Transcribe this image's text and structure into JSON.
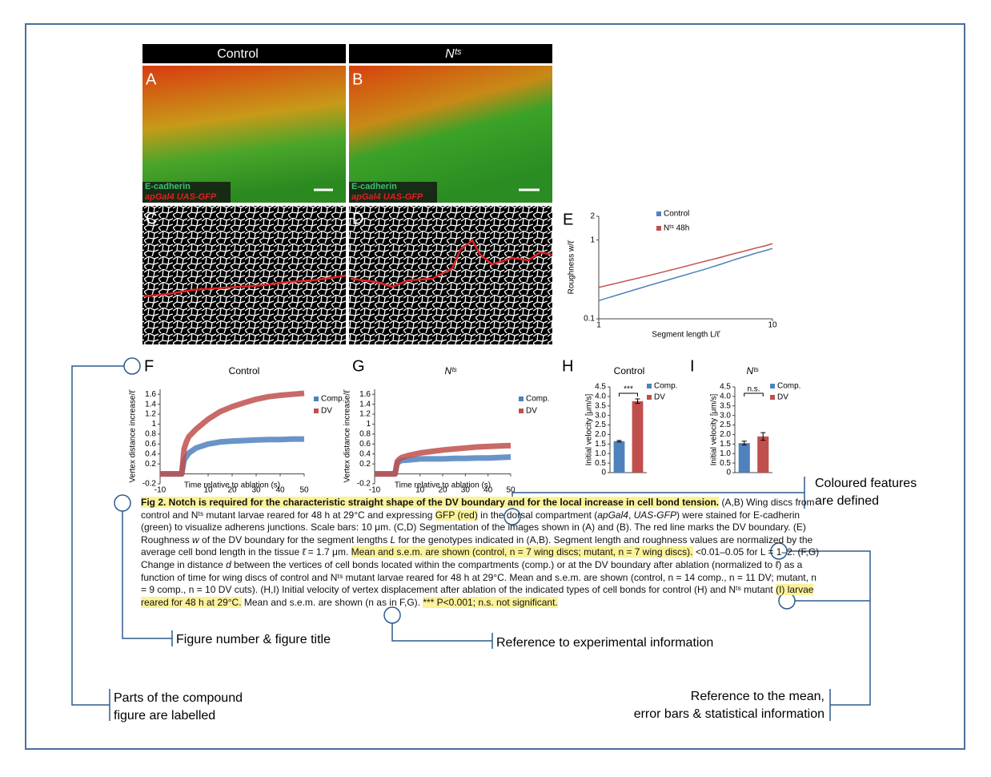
{
  "micrographs": {
    "headers": [
      "Control",
      "Nᵗˢ"
    ],
    "letters": [
      "A",
      "B",
      "C",
      "D"
    ],
    "stain_labels": [
      "E-cadherin",
      "E-cadherin"
    ],
    "reporter_labels": [
      "apGal4 UAS-GFP",
      "apGal4 UAS-GFP"
    ]
  },
  "chart_data": [
    {
      "type": "line",
      "label": "E",
      "x": [
        1,
        2,
        3,
        4,
        5,
        6,
        7,
        8,
        9,
        10
      ],
      "series": [
        {
          "name": "Control",
          "color": "#4f81bd",
          "values": [
            0.17,
            0.27,
            0.35,
            0.42,
            0.49,
            0.56,
            0.62,
            0.68,
            0.73,
            0.78
          ]
        },
        {
          "name": "Nᵗˢ 48h",
          "color": "#c0504d",
          "values": [
            0.25,
            0.36,
            0.45,
            0.53,
            0.6,
            0.67,
            0.73,
            0.79,
            0.84,
            0.9
          ]
        }
      ],
      "xlim": [
        1,
        10
      ],
      "ylim": [
        0.1,
        2
      ],
      "xticks": [
        1,
        10
      ],
      "yticks": [
        0.1,
        1,
        2
      ],
      "xscale": "log",
      "yscale": "log",
      "xlabel": "Segment length L/ℓ̄",
      "ylabel": "Roughness w/ℓ̄"
    },
    {
      "type": "line",
      "label": "F",
      "title": "Control",
      "x": [
        -10,
        -5,
        -1,
        0,
        1,
        2,
        5,
        10,
        15,
        20,
        25,
        30,
        35,
        40,
        45,
        50
      ],
      "series": [
        {
          "name": "Comp.",
          "color": "#4f81bd",
          "values": [
            0,
            0,
            0,
            0.28,
            0.35,
            0.42,
            0.52,
            0.6,
            0.64,
            0.66,
            0.67,
            0.68,
            0.69,
            0.69,
            0.7,
            0.7
          ]
        },
        {
          "name": "DV",
          "color": "#c0504d",
          "values": [
            0,
            0,
            0,
            0.5,
            0.65,
            0.75,
            0.9,
            1.1,
            1.25,
            1.35,
            1.43,
            1.5,
            1.55,
            1.58,
            1.6,
            1.62
          ]
        }
      ],
      "xlim": [
        -10,
        50
      ],
      "ylim": [
        -0.2,
        1.7
      ],
      "xticks": [
        -10,
        10,
        20,
        30,
        40,
        50
      ],
      "yticks": [
        -0.2,
        0.2,
        0.4,
        0.6,
        0.8,
        1,
        1.2,
        1.4,
        1.6
      ],
      "xlabel": "Time relative to ablation (s)",
      "ylabel": "Vertex distance increase/ℓ̄"
    },
    {
      "type": "line",
      "label": "G",
      "title": "Nᵗˢ",
      "x": [
        -10,
        -5,
        -1,
        0,
        1,
        2,
        5,
        10,
        15,
        20,
        25,
        30,
        35,
        40,
        45,
        50
      ],
      "series": [
        {
          "name": "Comp.",
          "color": "#4f81bd",
          "values": [
            0,
            0,
            0,
            0.22,
            0.25,
            0.27,
            0.28,
            0.3,
            0.3,
            0.3,
            0.31,
            0.31,
            0.32,
            0.32,
            0.33,
            0.34
          ]
        },
        {
          "name": "DV",
          "color": "#c0504d",
          "values": [
            0,
            0,
            0,
            0.25,
            0.3,
            0.33,
            0.37,
            0.42,
            0.45,
            0.48,
            0.5,
            0.52,
            0.54,
            0.55,
            0.56,
            0.57
          ]
        }
      ],
      "xlim": [
        -10,
        50
      ],
      "ylim": [
        -0.2,
        1.7
      ],
      "xticks": [
        -10,
        10,
        20,
        30,
        40,
        50
      ],
      "yticks": [
        -0.2,
        0.2,
        0.4,
        0.6,
        0.8,
        1,
        1.2,
        1.4,
        1.6
      ],
      "xlabel": "Time relative to ablation (s)",
      "ylabel": "Vertex distance increase/ℓ̄"
    },
    {
      "type": "bar",
      "label": "H",
      "title": "Control",
      "categories": [
        "Comp.",
        "DV"
      ],
      "values": [
        1.65,
        3.75
      ],
      "errors": [
        0.04,
        0.12
      ],
      "colors": [
        "#4f81bd",
        "#c0504d"
      ],
      "significance": "***",
      "ylim": [
        0,
        4.5
      ],
      "yticks": [
        0,
        0.5,
        {
          "value": 1,
          "label": "1.0"
        },
        1.5,
        {
          "value": 2,
          "label": "2.0"
        },
        2.5,
        {
          "value": 3,
          "label": "3.0"
        },
        3.5,
        {
          "value": 4,
          "label": "4.0"
        },
        4.5
      ],
      "ylabel": "Initial velocity [μm/s]"
    },
    {
      "type": "bar",
      "label": "I",
      "title": "Nᵗˢ",
      "categories": [
        "Comp.",
        "DV"
      ],
      "values": [
        1.55,
        1.9
      ],
      "errors": [
        0.1,
        0.2
      ],
      "colors": [
        "#4f81bd",
        "#c0504d"
      ],
      "significance": "n.s.",
      "ylim": [
        0,
        4.5
      ],
      "yticks": [
        0,
        0.5,
        {
          "value": 1,
          "label": "1.0"
        },
        1.5,
        {
          "value": 2,
          "label": "2.0"
        },
        2.5,
        {
          "value": 3,
          "label": "3.0"
        },
        3.5,
        {
          "value": 4,
          "label": "4.0"
        },
        4.5
      ],
      "ylabel": "Initial velocity [μm/s]"
    }
  ],
  "caption": {
    "spans": [
      {
        "text": "Fig 2. Notch is required for the characteristic straight shape of the DV boundary and for the local increase in cell bond tension.",
        "bold": true,
        "highlight": true
      },
      {
        "text": " (A,B) Wing discs from control and Nᵗˢ mutant larvae reared for 48 h at 29°C and expressing "
      },
      {
        "text": "GFP (red)",
        "highlight": true
      },
      {
        "text": " in the dorsal compartment ("
      },
      {
        "text": "apGal4",
        "italic": true
      },
      {
        "text": ", "
      },
      {
        "text": "UAS-GFP",
        "italic": true
      },
      {
        "text": ") were stained for E-cadherin (green) to visualize adherens junctions. Scale bars: 10 μm. (C,D) Segmentation of the images shown in (A) and (B). The red line marks the DV boundary. (E) Roughness "
      },
      {
        "text": "w",
        "italic": true
      },
      {
        "text": " of the DV boundary for the segment lengths "
      },
      {
        "text": "L",
        "italic": true
      },
      {
        "text": " for the genotypes indicated in (A,B). Segment length and roughness values are normalized by the average cell bond length in the tissue ℓ̄ = 1.7 μm. "
      },
      {
        "text": "Mean and s.e.m. are shown (control, n = 7 wing discs; mutant, n = 7 wing discs).",
        "highlight": true
      },
      {
        "text": " <0.01–0.05 for L = 1–2. (F,G) Change in distance "
      },
      {
        "text": "d",
        "italic": true
      },
      {
        "text": " between the vertices of cell bonds located within the compartments (comp.) or at the DV boundary after ablation (normalized to ℓ̄) as a function of time for wing discs of control and Nᵗˢ mutant larvae reared for 48 h at 29°C. Mean and s.e.m. are shown (control, n = 14 comp., n = 11 DV; mutant, n = 9 comp., n = 10 DV cuts). (H,I) Initial velocity of vertex displacement after ablation of the indicated types of cell bonds for control (H) and Nᵗˢ mutant "
      },
      {
        "text": "(I) larvae reared for 48 h at 29°C.",
        "highlight": true
      },
      {
        "text": " Mean and s.e.m. are shown (n as in F,G). "
      },
      {
        "text": "*** P<0.001; n.s. not significant.",
        "highlight": true
      }
    ]
  },
  "annotations": [
    {
      "lines": [
        "Coloured features",
        "are defined"
      ]
    },
    {
      "lines": [
        "Figure number & figure title"
      ]
    },
    {
      "lines": [
        "Reference to experimental information"
      ]
    },
    {
      "lines": [
        "Parts of the compound",
        "figure are labelled"
      ]
    },
    {
      "lines": [
        "Reference to the mean,",
        "error bars & statistical information"
      ]
    }
  ]
}
